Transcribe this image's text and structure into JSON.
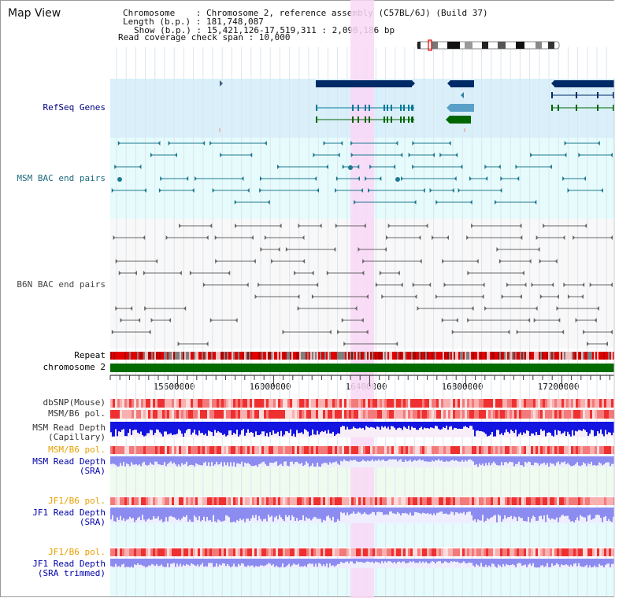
{
  "app": {
    "title": "Map View"
  },
  "info": {
    "chromosome": "Chromosome    : Chromosome 2, reference assembly (C57BL/6J) (Build 37)",
    "length": "Length (b.p.) : 181,748,087",
    "show": "Show (b.p.) : 15,421,126-17,519,311 : 2,098,186 bp",
    "span": "Read coverage check span : 10,000"
  },
  "tracks": [
    {
      "id": "refseq",
      "label": "RefSeq Genes",
      "color": "#00007f"
    },
    {
      "id": "msm-bac",
      "label": "MSM BAC end pairs",
      "color": "#1e6a80"
    },
    {
      "id": "b6n-bac",
      "label": "B6N BAC end pairs",
      "color": "#444444"
    },
    {
      "id": "repeat",
      "label": "Repeat",
      "color": "#000000"
    },
    {
      "id": "chromosome",
      "label": "chromosome 2",
      "color": "#000000"
    },
    {
      "id": "dbsnp",
      "label": "dbSNP(Mouse)",
      "color": "#333333"
    },
    {
      "id": "msm-pol",
      "label": "MSM/B6 pol.",
      "color": "#333333"
    },
    {
      "id": "msm-depth-cap",
      "label": "MSM Read Depth",
      "sub": "(Capillary)",
      "color": "#333333"
    },
    {
      "id": "msm-pol-sra",
      "label": "MSM/B6 pol.",
      "color": "#e8a000"
    },
    {
      "id": "msm-depth-sra",
      "label": "MSM Read Depth",
      "sub": "(SRA)",
      "color": "#0000aa"
    },
    {
      "id": "jf1-pol",
      "label": "JF1/B6 pol.",
      "color": "#e8a000"
    },
    {
      "id": "jf1-depth",
      "label": "JF1 Read Depth",
      "sub": "(SRA)",
      "color": "#0000aa"
    },
    {
      "id": "jf1-pol-trim",
      "label": "JF1/B6 pol.",
      "color": "#e8a000"
    },
    {
      "id": "jf1-depth-trim",
      "label": "JF1 Read Depth",
      "sub": "(SRA trimmed)",
      "color": "#0000aa"
    }
  ],
  "axis": {
    "ticks": [
      "15600000",
      "16000000",
      "16400000",
      "16800000",
      "17200000"
    ]
  },
  "colors": {
    "refseq_bg": "#d9f0fa",
    "bac_bg": "#e6fbfc",
    "highlight": "#f9d7f6",
    "gene_dark": "#002a66",
    "gene_line": "#007a99",
    "gene_green": "#006600",
    "msm_teal": "#1e7a90",
    "b6n_grey": "#666666",
    "chrom_green": "#006b00",
    "depth_blue": "#1414e0",
    "depth_light": "#8c8cf0"
  }
}
